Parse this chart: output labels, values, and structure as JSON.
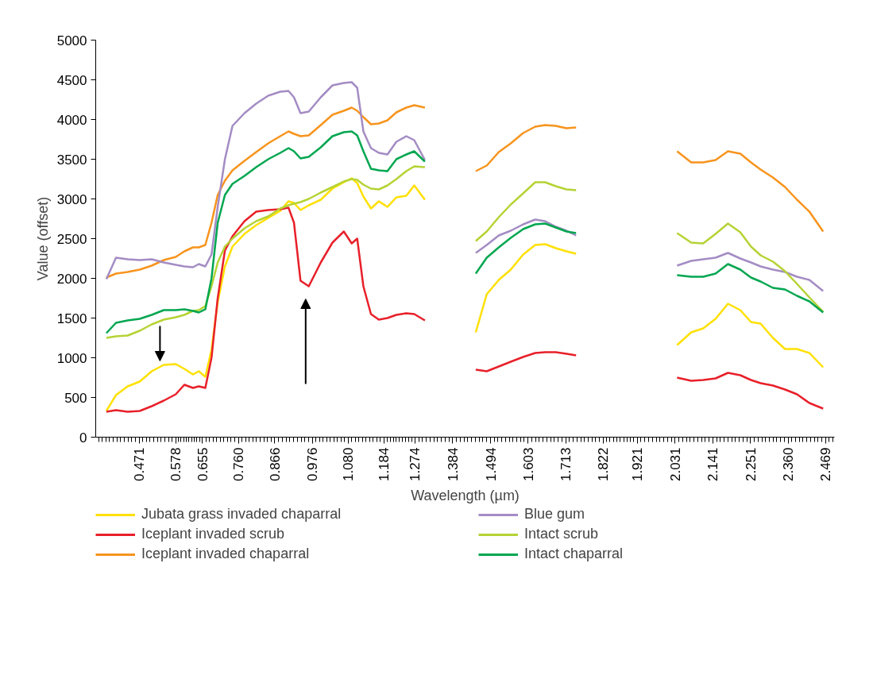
{
  "chart_data": {
    "type": "line",
    "xlabel": "Wavelength (µm)",
    "ylabel": "Value (offset)",
    "x": [
      0.376,
      0.404,
      0.438,
      0.473,
      0.508,
      0.543,
      0.578,
      0.603,
      0.628,
      0.645,
      0.664,
      0.682,
      0.7,
      0.721,
      0.743,
      0.778,
      0.812,
      0.847,
      0.882,
      0.906,
      0.922,
      0.941,
      0.965,
      1.0,
      1.034,
      1.067,
      1.09,
      1.106,
      1.124,
      1.146,
      1.169,
      1.194,
      1.22,
      1.249,
      1.272,
      1.303,
      1.38,
      1.451,
      1.483,
      1.518,
      1.553,
      1.589,
      1.624,
      1.653,
      1.684,
      1.715,
      1.743,
      1.9,
      2.037,
      2.078,
      2.113,
      2.149,
      2.185,
      2.221,
      2.252,
      2.28,
      2.316,
      2.351,
      2.386,
      2.422,
      2.462
    ],
    "series": [
      {
        "name": "Jubata grass invaded chaparral",
        "color": "#ffe000",
        "values": [
          330,
          530,
          640,
          700,
          830,
          910,
          920,
          860,
          790,
          830,
          760,
          1100,
          1700,
          2150,
          2400,
          2560,
          2670,
          2760,
          2850,
          2970,
          2950,
          2860,
          2920,
          2990,
          3130,
          3210,
          3260,
          3200,
          3030,
          2880,
          2970,
          2900,
          3020,
          3040,
          3170,
          2990,
          null,
          1320,
          1800,
          1980,
          2110,
          2300,
          2420,
          2430,
          2380,
          2340,
          2310,
          null,
          1160,
          1320,
          1370,
          1490,
          1680,
          1600,
          1450,
          1430,
          1250,
          1110,
          1110,
          1060,
          880
        ]
      },
      {
        "name": "Iceplant invaded scrub",
        "color": "#e8202a",
        "values": [
          320,
          340,
          320,
          330,
          390,
          460,
          540,
          660,
          620,
          640,
          620,
          1000,
          1750,
          2350,
          2530,
          2720,
          2840,
          2860,
          2870,
          2890,
          2700,
          1970,
          1900,
          2200,
          2450,
          2590,
          2440,
          2500,
          1900,
          1550,
          1480,
          1500,
          1540,
          1560,
          1550,
          1470,
          null,
          850,
          830,
          890,
          950,
          1010,
          1060,
          1070,
          1070,
          1050,
          1030,
          null,
          750,
          710,
          720,
          740,
          810,
          780,
          720,
          680,
          650,
          600,
          540,
          430,
          360
        ]
      },
      {
        "name": "Iceplant invaded chaparral",
        "color": "#f7941d",
        "values": [
          2010,
          2060,
          2080,
          2110,
          2160,
          2230,
          2270,
          2340,
          2390,
          2390,
          2420,
          2700,
          3050,
          3230,
          3360,
          3480,
          3590,
          3700,
          3790,
          3850,
          3820,
          3790,
          3800,
          3930,
          4060,
          4110,
          4150,
          4110,
          4030,
          3940,
          3950,
          3990,
          4090,
          4150,
          4180,
          4150,
          null,
          3350,
          3420,
          3590,
          3700,
          3830,
          3910,
          3930,
          3920,
          3890,
          3900,
          null,
          3600,
          3460,
          3460,
          3490,
          3600,
          3570,
          3460,
          3370,
          3270,
          3150,
          2990,
          2840,
          2590
        ]
      },
      {
        "name": "Blue gum",
        "color": "#a48cc4",
        "values": [
          1990,
          2260,
          2240,
          2230,
          2240,
          2200,
          2170,
          2150,
          2140,
          2180,
          2150,
          2300,
          2900,
          3500,
          3920,
          4080,
          4200,
          4300,
          4350,
          4360,
          4280,
          4080,
          4100,
          4280,
          4430,
          4460,
          4470,
          4400,
          3850,
          3640,
          3580,
          3560,
          3720,
          3790,
          3740,
          3490,
          null,
          2320,
          2420,
          2540,
          2600,
          2680,
          2740,
          2720,
          2650,
          2600,
          2540,
          null,
          2160,
          2220,
          2240,
          2260,
          2320,
          2250,
          2200,
          2150,
          2110,
          2080,
          2020,
          1980,
          1840
        ]
      },
      {
        "name": "Intact scrub",
        "color": "#b5d334",
        "values": [
          1250,
          1270,
          1280,
          1340,
          1420,
          1480,
          1510,
          1540,
          1590,
          1600,
          1650,
          1900,
          2200,
          2400,
          2500,
          2630,
          2720,
          2780,
          2880,
          2920,
          2940,
          2960,
          3000,
          3080,
          3150,
          3220,
          3250,
          3240,
          3180,
          3130,
          3120,
          3170,
          3250,
          3350,
          3410,
          3400,
          null,
          2470,
          2590,
          2770,
          2930,
          3070,
          3210,
          3210,
          3160,
          3120,
          3110,
          null,
          2570,
          2450,
          2440,
          2560,
          2690,
          2580,
          2400,
          2290,
          2210,
          2090,
          1930,
          1760,
          1580
        ]
      },
      {
        "name": "Intact chaparral",
        "color": "#00a650",
        "values": [
          1310,
          1440,
          1470,
          1490,
          1540,
          1600,
          1600,
          1610,
          1590,
          1570,
          1610,
          2000,
          2700,
          3050,
          3190,
          3290,
          3400,
          3500,
          3580,
          3640,
          3600,
          3510,
          3530,
          3650,
          3790,
          3840,
          3850,
          3800,
          3600,
          3380,
          3360,
          3350,
          3500,
          3560,
          3600,
          3470,
          null,
          2060,
          2260,
          2390,
          2510,
          2620,
          2680,
          2690,
          2640,
          2590,
          2570,
          null,
          2040,
          2020,
          2020,
          2060,
          2180,
          2110,
          2010,
          1960,
          1880,
          1860,
          1780,
          1710,
          1570
        ]
      }
    ],
    "xlim": [
      0.345,
      2.495
    ],
    "xticks": [
      {
        "value": 0.471,
        "label": "0.471"
      },
      {
        "value": 0.578,
        "label": "0.578"
      },
      {
        "value": 0.655,
        "label": "0.655"
      },
      {
        "value": 0.76,
        "label": "0.760"
      },
      {
        "value": 0.866,
        "label": "0.866"
      },
      {
        "value": 0.976,
        "label": "0.976"
      },
      {
        "value": 1.08,
        "label": "1.080"
      },
      {
        "value": 1.184,
        "label": "1.184"
      },
      {
        "value": 1.274,
        "label": "1.274"
      },
      {
        "value": 1.384,
        "label": "1.384"
      },
      {
        "value": 1.494,
        "label": "1.494"
      },
      {
        "value": 1.603,
        "label": "1.603"
      },
      {
        "value": 1.713,
        "label": "1.713"
      },
      {
        "value": 1.822,
        "label": "1.822"
      },
      {
        "value": 1.921,
        "label": "1.921"
      },
      {
        "value": 2.031,
        "label": "2.031"
      },
      {
        "value": 2.141,
        "label": "2.141"
      },
      {
        "value": 2.251,
        "label": "2.251"
      },
      {
        "value": 2.36,
        "label": "2.360"
      },
      {
        "value": 2.469,
        "label": "2.469"
      }
    ],
    "ylim": [
      0,
      5000
    ],
    "yticks": [
      0,
      500,
      1000,
      1500,
      2000,
      2500,
      3000,
      3500,
      4000,
      4500,
      5000
    ],
    "grid": false,
    "legend": "bottom",
    "line_style": "solid"
  }
}
